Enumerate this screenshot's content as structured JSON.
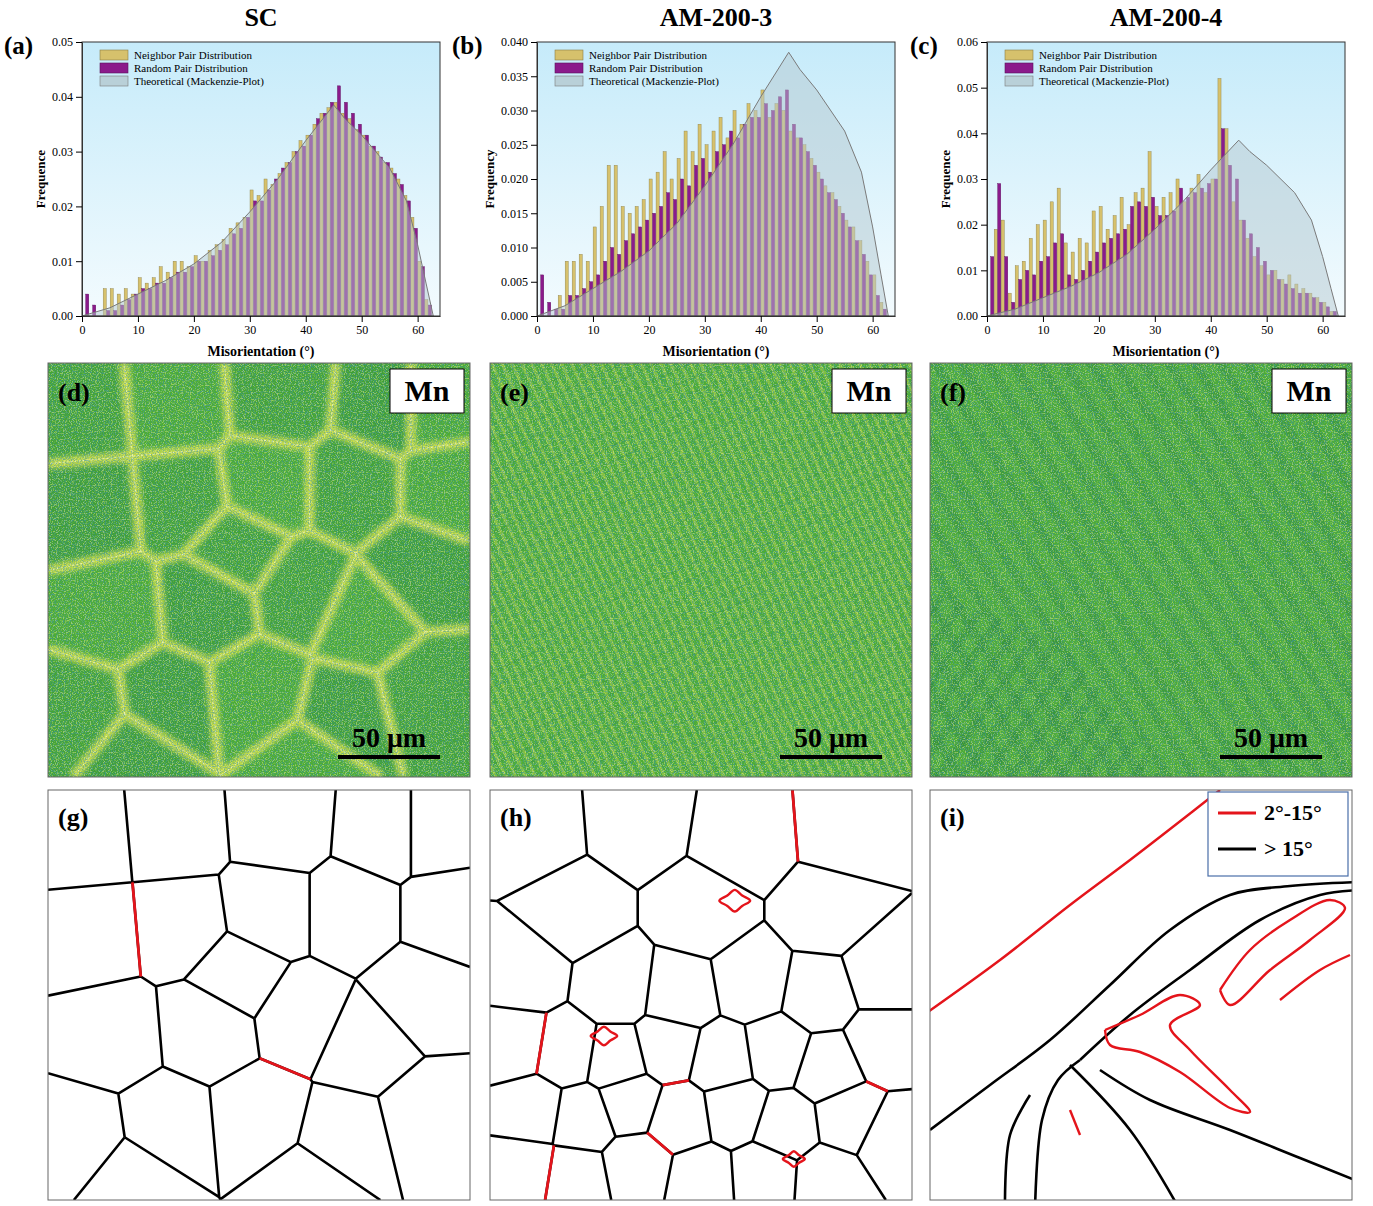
{
  "chart_data": [
    {
      "type": "histogram",
      "title": "SC",
      "panel_label": "(a)",
      "x_label": "Misorientation (°)",
      "y_label": "Frequence",
      "bins": [
        0,
        1.25,
        2.5,
        3.75,
        5,
        6.25,
        7.5,
        8.75,
        10,
        11.25,
        12.5,
        13.75,
        15,
        16.25,
        17.5,
        18.75,
        20,
        21.25,
        22.5,
        23.75,
        25,
        26.25,
        27.5,
        28.75,
        30,
        31.25,
        32.5,
        33.75,
        35,
        36.25,
        37.5,
        38.75,
        40,
        41.25,
        42.5,
        43.75,
        45,
        46.25,
        47.5,
        48.75,
        50,
        51.25,
        52.5,
        53.75,
        55,
        56.25,
        57.5,
        58.75,
        60,
        61.25,
        62.5
      ],
      "series": [
        {
          "name": "Neighbor Pair Distribution",
          "type": "bar",
          "color": "#d6c16c",
          "values": [
            0,
            0,
            0,
            0.005,
            0.005,
            0.004,
            0.005,
            0.004,
            0.007,
            0.006,
            0.007,
            0.009,
            0.008,
            0.01,
            0.01,
            0.009,
            0.011,
            0.01,
            0.012,
            0.013,
            0.014,
            0.016,
            0.017,
            0.018,
            0.023,
            0.022,
            0.025,
            0.024,
            0.026,
            0.028,
            0.03,
            0.032,
            0.033,
            0.035,
            0.037,
            0.038,
            0.039,
            0.037,
            0.036,
            0.034,
            0.033,
            0.031,
            0.03,
            0.028,
            0.027,
            0.025,
            0.022,
            0.018,
            0.01,
            0.003
          ]
        },
        {
          "name": "Random Pair Distribution",
          "type": "bar",
          "color": "#8b1a8b",
          "values": [
            0.004,
            0.002,
            0,
            0.001,
            0.001,
            0.002,
            0.003,
            0.004,
            0.005,
            0.005,
            0.006,
            0.006,
            0.007,
            0.008,
            0.008,
            0.009,
            0.01,
            0.01,
            0.011,
            0.012,
            0.013,
            0.015,
            0.016,
            0.018,
            0.021,
            0.021,
            0.023,
            0.025,
            0.027,
            0.028,
            0.03,
            0.031,
            0.033,
            0.036,
            0.037,
            0.039,
            0.042,
            0.039,
            0.037,
            0.035,
            0.033,
            0.031,
            0.029,
            0.028,
            0.026,
            0.024,
            0.021,
            0.016,
            0.009,
            0.002
          ]
        },
        {
          "name": "Theoretical (Mackenzie-Plot)",
          "type": "area",
          "color": "#b4c8cf",
          "x": [
            0,
            5,
            10,
            15,
            20,
            25,
            30,
            35,
            40,
            45,
            47,
            50,
            55,
            58,
            60,
            61.5,
            62.8
          ],
          "values": [
            0,
            0.0015,
            0.004,
            0.0065,
            0.0095,
            0.0135,
            0.019,
            0.025,
            0.032,
            0.0385,
            0.036,
            0.033,
            0.027,
            0.021,
            0.013,
            0.006,
            0
          ]
        }
      ],
      "xlim": [
        0,
        64
      ],
      "xticks": [
        0,
        10,
        20,
        30,
        40,
        50,
        60
      ],
      "ylim": [
        0,
        0.05
      ],
      "yticks": [
        {
          "value": 0,
          "label": "0.00"
        },
        0.01,
        0.02,
        0.03,
        0.04,
        0.05
      ],
      "legend": "upper left"
    },
    {
      "type": "histogram",
      "title": "AM-200-3",
      "panel_label": "(b)",
      "x_label": "Misorientation (°)",
      "y_label": "Frequency",
      "bins": [
        0,
        1.25,
        2.5,
        3.75,
        5,
        6.25,
        7.5,
        8.75,
        10,
        11.25,
        12.5,
        13.75,
        15,
        16.25,
        17.5,
        18.75,
        20,
        21.25,
        22.5,
        23.75,
        25,
        26.25,
        27.5,
        28.75,
        30,
        31.25,
        32.5,
        33.75,
        35,
        36.25,
        37.5,
        38.75,
        40,
        41.25,
        42.5,
        43.75,
        45,
        46.25,
        47.5,
        48.75,
        50,
        51.25,
        52.5,
        53.75,
        55,
        56.25,
        57.5,
        58.75,
        60,
        61.25,
        62.5
      ],
      "series": [
        {
          "name": "Neighbor Pair Distribution",
          "type": "bar",
          "color": "#d6c16c",
          "values": [
            0,
            0,
            0,
            0.003,
            0.008,
            0.008,
            0.009,
            0.008,
            0.013,
            0.016,
            0.022,
            0.022,
            0.016,
            0.015,
            0.016,
            0.017,
            0.02,
            0.021,
            0.024,
            0.02,
            0.023,
            0.027,
            0.024,
            0.028,
            0.025,
            0.027,
            0.029,
            0.026,
            0.03,
            0.028,
            0.031,
            0.03,
            0.033,
            0.029,
            0.031,
            0.03,
            0.027,
            0.026,
            0.025,
            0.023,
            0.021,
            0.019,
            0.018,
            0.016,
            0.014,
            0.013,
            0.011,
            0.008,
            0.006,
            0.002
          ]
        },
        {
          "name": "Random Pair Distribution",
          "type": "bar",
          "color": "#8b1a8b",
          "values": [
            0.006,
            0.002,
            0.001,
            0.001,
            0.003,
            0.003,
            0.004,
            0.005,
            0.006,
            0.008,
            0.01,
            0.009,
            0.011,
            0.012,
            0.013,
            0.014,
            0.015,
            0.016,
            0.018,
            0.017,
            0.02,
            0.019,
            0.022,
            0.023,
            0.021,
            0.024,
            0.025,
            0.027,
            0.026,
            0.028,
            0.029,
            0.029,
            0.031,
            0.03,
            0.032,
            0.033,
            0.028,
            0.026,
            0.024,
            0.022,
            0.02,
            0.018,
            0.017,
            0.015,
            0.013,
            0.011,
            0.009,
            0.006,
            0.003,
            0.001
          ]
        },
        {
          "name": "Theoretical (Mackenzie-Plot)",
          "type": "area",
          "color": "#b4c8cf",
          "x": [
            0,
            5,
            10,
            15,
            20,
            25,
            30,
            35,
            40,
            45,
            47,
            50,
            55,
            58,
            60,
            61.5,
            62.8
          ],
          "values": [
            0,
            0.0015,
            0.004,
            0.0065,
            0.0095,
            0.0135,
            0.019,
            0.025,
            0.032,
            0.0385,
            0.036,
            0.033,
            0.027,
            0.021,
            0.013,
            0.006,
            0
          ]
        }
      ],
      "xlim": [
        0,
        64
      ],
      "xticks": [
        0,
        10,
        20,
        30,
        40,
        50,
        60
      ],
      "ylim": [
        0,
        0.04
      ],
      "yticks": [
        {
          "value": 0,
          "label": "0.000"
        },
        0.005,
        {
          "value": 0.01,
          "label": "0.010"
        },
        0.015,
        {
          "value": 0.02,
          "label": "0.020"
        },
        0.025,
        {
          "value": 0.03,
          "label": "0.030"
        },
        0.035,
        {
          "value": 0.04,
          "label": "0.040"
        }
      ],
      "legend": "upper left"
    },
    {
      "type": "histogram",
      "title": "AM-200-4",
      "panel_label": "(c)",
      "x_label": "Misorientation (°)",
      "y_label": "Frequence",
      "bins": [
        0,
        1.25,
        2.5,
        3.75,
        5,
        6.25,
        7.5,
        8.75,
        10,
        11.25,
        12.5,
        13.75,
        15,
        16.25,
        17.5,
        18.75,
        20,
        21.25,
        22.5,
        23.75,
        25,
        26.25,
        27.5,
        28.75,
        30,
        31.25,
        32.5,
        33.75,
        35,
        36.25,
        37.5,
        38.75,
        40,
        41.25,
        42.5,
        43.75,
        45,
        46.25,
        47.5,
        48.75,
        50,
        51.25,
        52.5,
        53.75,
        55,
        56.25,
        57.5,
        58.75,
        60,
        61.25,
        62.5
      ],
      "series": [
        {
          "name": "Neighbor Pair Distribution",
          "type": "bar",
          "color": "#d6c16c",
          "values": [
            0,
            0.019,
            0.021,
            0.005,
            0.011,
            0.012,
            0.017,
            0.02,
            0.021,
            0.025,
            0.028,
            0.016,
            0.014,
            0.017,
            0.016,
            0.023,
            0.024,
            0.019,
            0.022,
            0.026,
            0.02,
            0.027,
            0.028,
            0.036,
            0.024,
            0.026,
            0.027,
            0.03,
            0.025,
            0.028,
            0.031,
            0.027,
            0.03,
            0.052,
            0.041,
            0.025,
            0.021,
            0.017,
            0.013,
            0.011,
            0.009,
            0.01,
            0.008,
            0.009,
            0.007,
            0.006,
            0.005,
            0.004,
            0.003,
            0.001
          ]
        },
        {
          "name": "Random Pair Distribution",
          "type": "bar",
          "color": "#8b1a8b",
          "values": [
            0.013,
            0.029,
            0.013,
            0.003,
            0.008,
            0.01,
            0.009,
            0.012,
            0.013,
            0.016,
            0.018,
            0.009,
            0.008,
            0.01,
            0.012,
            0.014,
            0.016,
            0.017,
            0.018,
            0.019,
            0.024,
            0.025,
            0.024,
            0.026,
            0.022,
            0.022,
            0.023,
            0.028,
            0.026,
            0.027,
            0.028,
            0.029,
            0.03,
            0.041,
            0.033,
            0.03,
            0.021,
            0.018,
            0.015,
            0.012,
            0.01,
            0.008,
            0.007,
            0.006,
            0.005,
            0.005,
            0.004,
            0.003,
            0.002,
            0.001
          ]
        },
        {
          "name": "Theoretical (Mackenzie-Plot)",
          "type": "area",
          "color": "#b4c8cf",
          "x": [
            0,
            5,
            10,
            15,
            20,
            25,
            30,
            35,
            40,
            45,
            47,
            50,
            55,
            58,
            60,
            61.5,
            62.8
          ],
          "values": [
            0,
            0.0015,
            0.004,
            0.0065,
            0.0095,
            0.0135,
            0.019,
            0.025,
            0.032,
            0.0385,
            0.036,
            0.033,
            0.027,
            0.021,
            0.013,
            0.006,
            0
          ]
        }
      ],
      "xlim": [
        0,
        64
      ],
      "xticks": [
        0,
        10,
        20,
        30,
        40,
        50,
        60
      ],
      "ylim": [
        0,
        0.06
      ],
      "yticks": [
        {
          "value": 0,
          "label": "0.00"
        },
        0.01,
        0.02,
        0.03,
        0.04,
        0.05,
        0.06
      ],
      "legend": "upper left"
    }
  ],
  "eds_maps": [
    {
      "panel_label": "(d)",
      "element": "Mn",
      "scale_bar": "50 μm"
    },
    {
      "panel_label": "(e)",
      "element": "Mn",
      "scale_bar": "50 μm"
    },
    {
      "panel_label": "(f)",
      "element": "Mn",
      "scale_bar": "50 μm"
    }
  ],
  "boundary_maps": {
    "panel_labels": [
      "(g)",
      "(h)",
      "(i)"
    ],
    "legend": [
      {
        "label": "2°-15°",
        "color": "#e4141b"
      },
      {
        "label": "> 15°",
        "color": "#000000"
      }
    ]
  }
}
